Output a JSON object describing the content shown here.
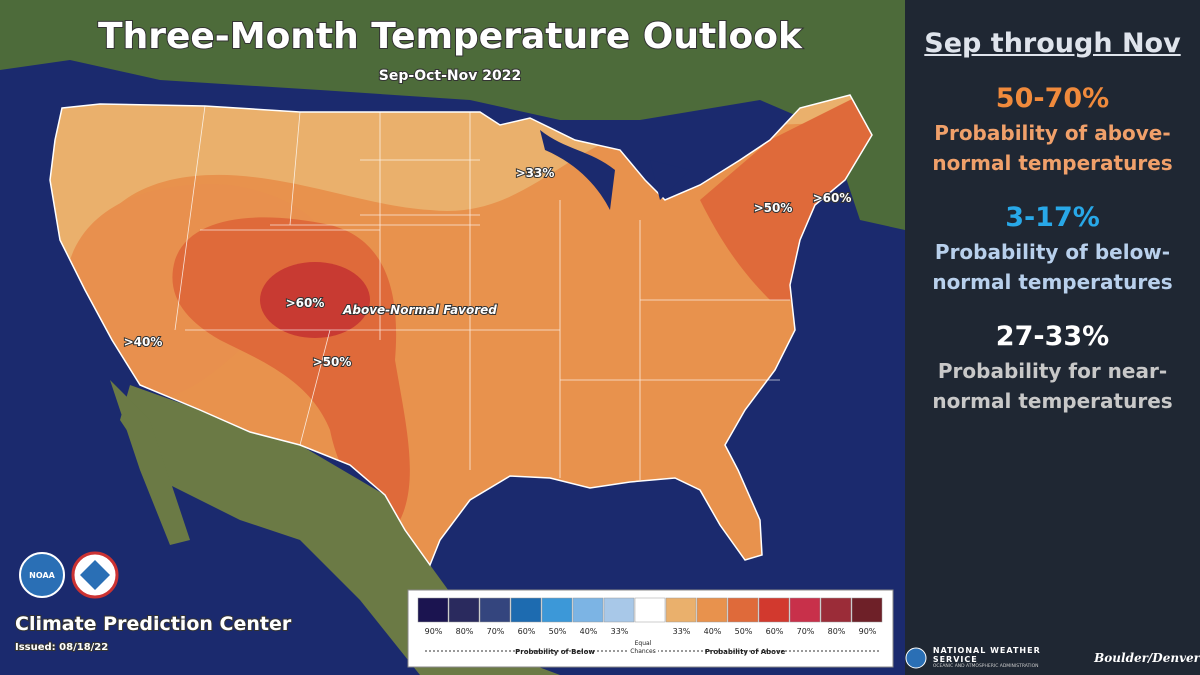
{
  "header": {
    "title": "Three-Month Temperature Outlook",
    "subtitle": "Sep-Oct-Nov 2022"
  },
  "map": {
    "labels": [
      ">33%",
      ">50%",
      ">60%",
      ">40%",
      ">60%",
      ">50%"
    ],
    "annotation": "Above-Normal Favored"
  },
  "branding": {
    "center": "Climate Prediction Center",
    "issued": "Issued: 08/18/22",
    "noaa": "NOAA"
  },
  "legend": {
    "ticks": [
      "90%",
      "80%",
      "70%",
      "60%",
      "50%",
      "40%",
      "33%",
      "33%",
      "40%",
      "50%",
      "60%",
      "70%",
      "80%",
      "90%"
    ],
    "below": "Probability of Below",
    "equal": "Equal Chances",
    "above": "Probability of Above"
  },
  "panel": {
    "heading": "Sep through Nov",
    "items": [
      {
        "range": "50-70%",
        "text": "Probability of above-normal temperatures"
      },
      {
        "range": "3-17%",
        "text": "Probability of below-normal temperatures"
      },
      {
        "range": "27-33%",
        "text": "Probability for near-normal temperatures"
      }
    ]
  },
  "footer": {
    "agency": "NATIONAL WEATHER SERVICE",
    "sub": "OCEANIC AND ATMOSPHERIC ADMINISTRATION",
    "office": "Boulder/Denver"
  }
}
